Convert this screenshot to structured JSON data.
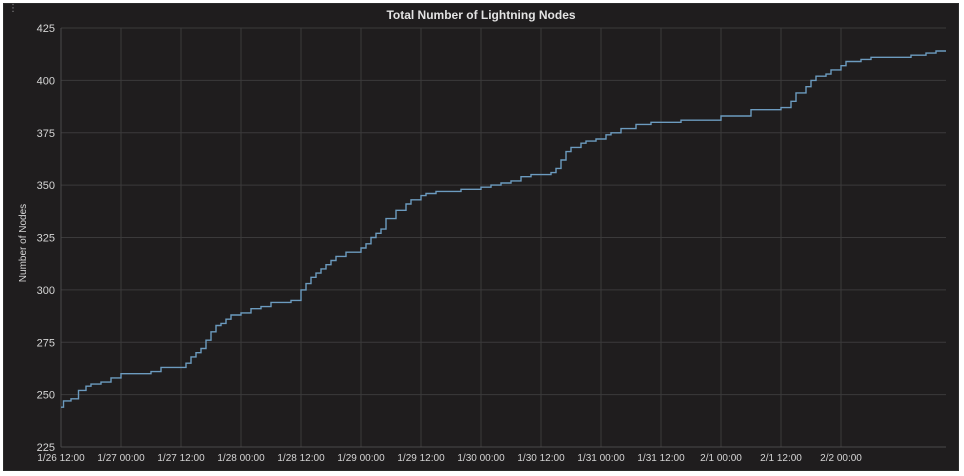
{
  "panel": {
    "menu_glyph": "⋮"
  },
  "chart_data": {
    "type": "line",
    "title": "Total Number of Lightning Nodes",
    "ylabel": "Number of Nodes",
    "xlabel": "",
    "ylim": [
      225,
      425
    ],
    "xlim": [
      "2018-01-26T12:00",
      "2018-02-02T21:00"
    ],
    "yticks": [
      225,
      250,
      275,
      300,
      325,
      350,
      375,
      400,
      425
    ],
    "xticks": [
      "1/26 12:00",
      "1/27 00:00",
      "1/27 12:00",
      "1/28 00:00",
      "1/28 12:00",
      "1/29 00:00",
      "1/29 12:00",
      "1/30 00:00",
      "1/30 12:00",
      "1/31 00:00",
      "1/31 12:00",
      "2/1 00:00",
      "2/1 12:00",
      "2/2 00:00"
    ],
    "grid": true,
    "line_color": "#6c9bbf",
    "series": [
      {
        "step": true,
        "x": [
          "2018-01-26T12:00",
          "2018-01-26T12:30",
          "2018-01-26T14:00",
          "2018-01-26T15:30",
          "2018-01-26T17:00",
          "2018-01-26T18:00",
          "2018-01-26T20:00",
          "2018-01-26T22:00",
          "2018-01-27T00:00",
          "2018-01-27T06:00",
          "2018-01-27T08:00",
          "2018-01-27T13:00",
          "2018-01-27T14:00",
          "2018-01-27T15:00",
          "2018-01-27T16:00",
          "2018-01-27T17:00",
          "2018-01-27T18:00",
          "2018-01-27T19:00",
          "2018-01-27T20:00",
          "2018-01-27T21:00",
          "2018-01-27T22:00",
          "2018-01-28T00:00",
          "2018-01-28T02:00",
          "2018-01-28T04:00",
          "2018-01-28T06:00",
          "2018-01-28T10:00",
          "2018-01-28T12:00",
          "2018-01-28T13:00",
          "2018-01-28T14:00",
          "2018-01-28T15:00",
          "2018-01-28T16:00",
          "2018-01-28T17:00",
          "2018-01-28T18:00",
          "2018-01-28T19:00",
          "2018-01-28T20:00",
          "2018-01-28T21:00",
          "2018-01-29T00:00",
          "2018-01-29T01:00",
          "2018-01-29T02:00",
          "2018-01-29T03:00",
          "2018-01-29T04:00",
          "2018-01-29T05:00",
          "2018-01-29T07:00",
          "2018-01-29T09:00",
          "2018-01-29T10:00",
          "2018-01-29T12:00",
          "2018-01-29T13:00",
          "2018-01-29T14:00",
          "2018-01-29T15:00",
          "2018-01-29T17:00",
          "2018-01-29T20:00",
          "2018-01-30T00:00",
          "2018-01-30T02:00",
          "2018-01-30T04:00",
          "2018-01-30T06:00",
          "2018-01-30T08:00",
          "2018-01-30T10:00",
          "2018-01-30T14:00",
          "2018-01-30T15:00",
          "2018-01-30T16:00",
          "2018-01-30T17:00",
          "2018-01-30T18:00",
          "2018-01-30T20:00",
          "2018-01-30T21:00",
          "2018-01-30T23:00",
          "2018-01-31T01:00",
          "2018-01-31T02:00",
          "2018-01-31T04:00",
          "2018-01-31T07:00",
          "2018-01-31T10:00",
          "2018-01-31T16:00",
          "2018-02-01T00:00",
          "2018-02-01T06:00",
          "2018-02-01T12:00",
          "2018-02-01T14:00",
          "2018-02-01T15:00",
          "2018-02-01T17:00",
          "2018-02-01T18:00",
          "2018-02-01T19:00",
          "2018-02-01T21:00",
          "2018-02-01T22:00",
          "2018-02-02T00:00",
          "2018-02-02T01:00",
          "2018-02-02T04:00",
          "2018-02-02T06:00",
          "2018-02-02T14:00",
          "2018-02-02T17:00",
          "2018-02-02T19:00",
          "2018-02-02T21:00"
        ],
        "values": [
          244,
          247,
          248,
          252,
          254,
          255,
          256,
          258,
          260,
          261,
          263,
          265,
          268,
          270,
          272,
          276,
          280,
          283,
          284,
          286,
          288,
          289,
          291,
          292,
          294,
          295,
          300,
          303,
          306,
          308,
          310,
          312,
          314,
          316,
          316,
          318,
          320,
          322,
          325,
          327,
          329,
          334,
          338,
          341,
          343,
          345,
          346,
          346,
          347,
          347,
          348,
          349,
          350,
          351,
          352,
          354,
          355,
          356,
          358,
          362,
          366,
          368,
          370,
          371,
          372,
          374,
          375,
          377,
          379,
          380,
          381,
          383,
          386,
          387,
          390,
          394,
          397,
          400,
          402,
          403,
          405,
          407,
          409,
          410,
          411,
          412,
          413,
          414,
          414
        ]
      }
    ]
  }
}
